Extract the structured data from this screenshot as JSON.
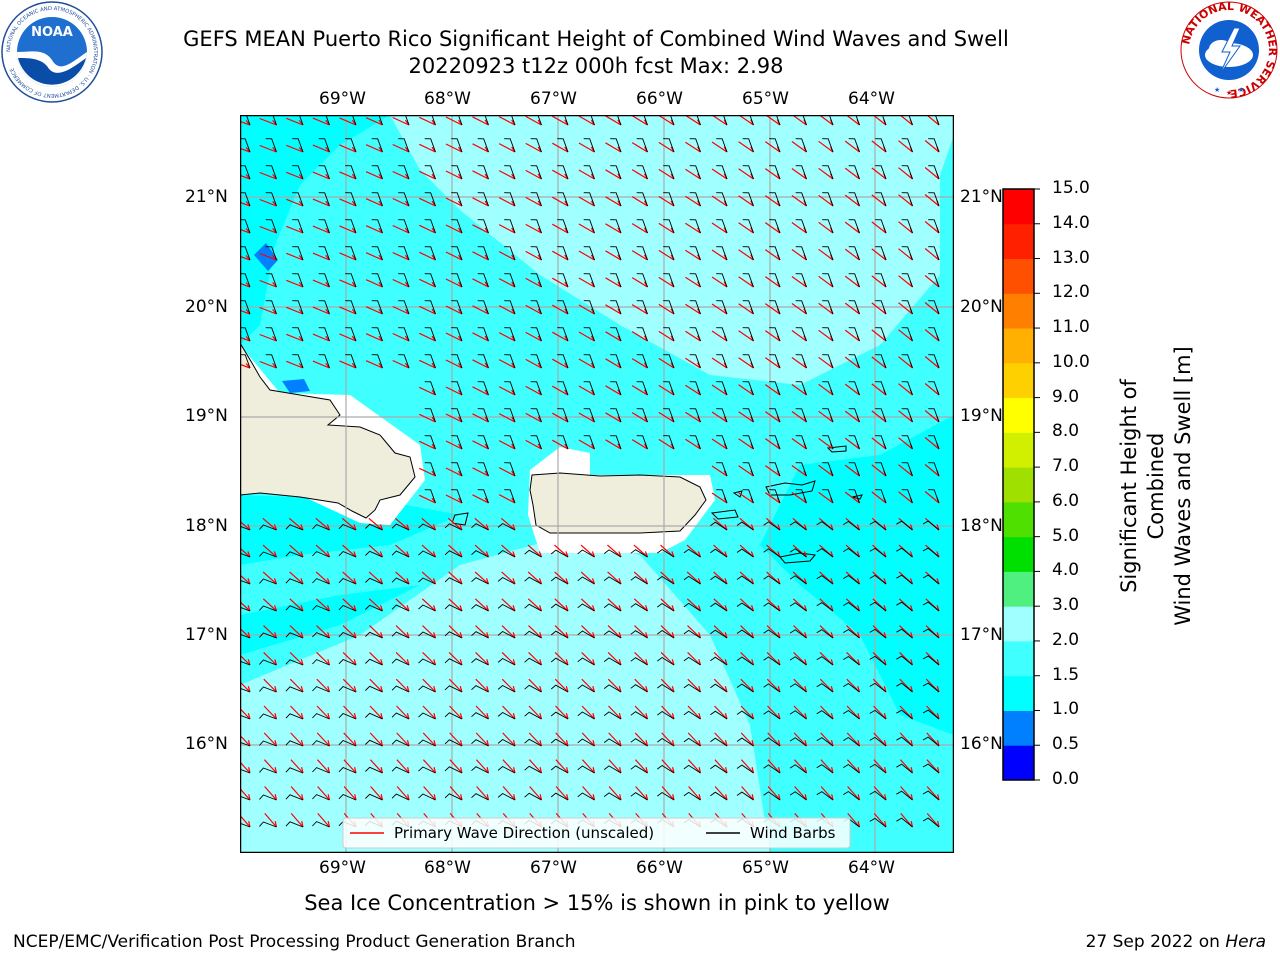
{
  "title": {
    "line1": "GEFS MEAN Puerto Rico Significant Height of Combined Wind Waves and Swell",
    "line2": "20220923 t12z 000h fcst   Max: 2.98"
  },
  "map": {
    "lon_labels": [
      "69°W",
      "68°W",
      "67°W",
      "66°W",
      "65°W",
      "64°W"
    ],
    "lat_labels": [
      "21°N",
      "20°N",
      "19°N",
      "18°N",
      "17°N",
      "16°N"
    ],
    "lon_values": [
      -69,
      -68,
      -67,
      -66,
      -65,
      -64
    ],
    "lat_values": [
      21,
      20,
      19,
      18,
      17,
      16
    ],
    "extent": {
      "lon_min": -70,
      "lon_max": -63.25,
      "lat_min": 15.0,
      "lat_max": 21.75
    }
  },
  "legend": {
    "wave_label": "Primary Wave Direction (unscaled)",
    "barb_label": "Wind Barbs"
  },
  "colorbar": {
    "label_line1": "Significant Height of Combined",
    "label_line2": "Wind Waves and Swell [m]",
    "ticks": [
      "0.0",
      "0.5",
      "1.0",
      "1.5",
      "2.0",
      "3.0",
      "4.0",
      "5.0",
      "6.0",
      "7.0",
      "8.0",
      "9.0",
      "10.0",
      "11.0",
      "12.0",
      "13.0",
      "14.0",
      "15.0"
    ],
    "colors": [
      "#0000ff",
      "#0080ff",
      "#00ffff",
      "#40ffff",
      "#a0ffff",
      "#50f080",
      "#00e000",
      "#50e000",
      "#a0e000",
      "#d0f000",
      "#ffff00",
      "#ffd000",
      "#ffb000",
      "#ff8000",
      "#ff5000",
      "#ff2000",
      "#ff0000"
    ]
  },
  "footer": {
    "sea_ice_note": "Sea Ice Concentration > 15% is shown in pink to yellow",
    "credit": "NCEP/EMC/Verification Post Processing Product Generation Branch",
    "date": "27 Sep 2022 on",
    "machine": "Hera"
  },
  "logos": {
    "noaa_text": "NOAA",
    "noaa_ring_text": "NATIONAL OCEANIC AND ATMOSPHERIC ADMINISTRATION · U.S. DEPARTMENT OF COMMERCE",
    "nws_ring_text": "NATIONAL WEATHER SERVICE"
  },
  "colors": {
    "land": "#efeddc",
    "wave_arrow": "#ff0000",
    "barb": "#000000",
    "grid": "#aaaaaa"
  }
}
